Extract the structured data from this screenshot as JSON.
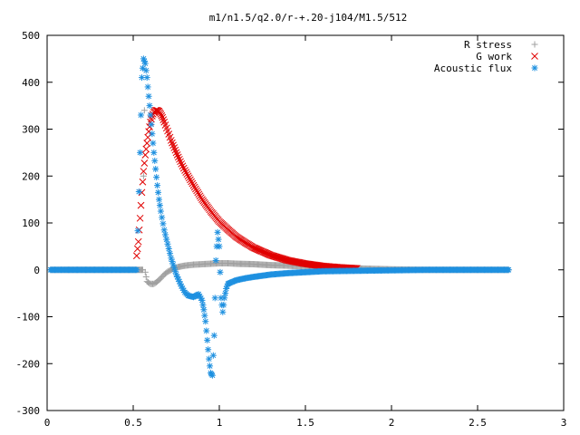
{
  "chart_data": {
    "type": "scatter",
    "title": "m1/n1.5/q2.0/r-+.20-j104/M1.5/512",
    "xlabel": "",
    "ylabel": "",
    "xlim": [
      0,
      3
    ],
    "ylim": [
      -300,
      500
    ],
    "x_ticks": [
      0,
      0.5,
      1,
      1.5,
      2,
      2.5,
      3
    ],
    "x_tick_labels": [
      "0",
      "0.5",
      "1",
      "1.5",
      "2",
      "2.5",
      "3"
    ],
    "y_ticks": [
      -300,
      -200,
      -100,
      0,
      100,
      200,
      300,
      400,
      500
    ],
    "y_tick_labels": [
      "-300",
      "-200",
      "-100",
      "0",
      "100",
      "200",
      "300",
      "400",
      "500"
    ],
    "grid": false,
    "legend_position": "top-right",
    "series": [
      {
        "name": "R stress",
        "marker": "plus",
        "color": "#a0a0a0",
        "x": [
          0.02,
          0.1,
          0.2,
          0.3,
          0.4,
          0.5,
          0.54,
          0.555,
          0.56,
          0.565,
          0.57,
          0.58,
          0.6,
          0.62,
          0.64,
          0.66,
          0.68,
          0.7,
          0.73,
          0.76,
          0.8,
          0.85,
          0.9,
          0.95,
          1.0,
          1.05,
          1.1,
          1.2,
          1.3,
          1.4,
          1.5,
          1.6,
          1.7,
          1.8,
          1.9,
          2.0,
          2.2,
          2.4,
          2.6,
          2.68
        ],
        "y": [
          0,
          0,
          0,
          0,
          0,
          0,
          0,
          0,
          200,
          340,
          -5,
          -25,
          -30,
          -30,
          -25,
          -18,
          -10,
          -4,
          2,
          6,
          9,
          11,
          12,
          13,
          14,
          14,
          13,
          12,
          10,
          9,
          7,
          5,
          4,
          3,
          2,
          1,
          0,
          0,
          0,
          0
        ]
      },
      {
        "name": "G work",
        "marker": "x",
        "color": "#e00000",
        "x": [
          0.52,
          0.53,
          0.54,
          0.55,
          0.56,
          0.57,
          0.58,
          0.59,
          0.6,
          0.61,
          0.62,
          0.63,
          0.64,
          0.65,
          0.66,
          0.67,
          0.68,
          0.7,
          0.72,
          0.75,
          0.78,
          0.8,
          0.85,
          0.9,
          0.95,
          1.0,
          1.05,
          1.1,
          1.15,
          1.2,
          1.3,
          1.4,
          1.5,
          1.6,
          1.7,
          1.8
        ],
        "y": [
          30,
          60,
          110,
          165,
          210,
          245,
          270,
          295,
          315,
          328,
          336,
          340,
          340,
          338,
          332,
          325,
          315,
          296,
          276,
          250,
          226,
          212,
          180,
          150,
          125,
          103,
          86,
          70,
          58,
          47,
          31,
          20,
          13,
          8,
          5,
          3
        ]
      },
      {
        "name": "Acoustic flux",
        "marker": "star",
        "color": "#1e90e0",
        "x": [
          0.02,
          0.1,
          0.2,
          0.3,
          0.4,
          0.5,
          0.52,
          0.54,
          0.55,
          0.56,
          0.57,
          0.58,
          0.59,
          0.6,
          0.61,
          0.62,
          0.63,
          0.64,
          0.65,
          0.66,
          0.68,
          0.7,
          0.72,
          0.75,
          0.78,
          0.8,
          0.82,
          0.85,
          0.88,
          0.9,
          0.91,
          0.92,
          0.93,
          0.94,
          0.95,
          0.96,
          0.97,
          0.98,
          0.99,
          1.0,
          1.01,
          1.02,
          1.03,
          1.04,
          1.05,
          1.06,
          1.08,
          1.1,
          1.15,
          1.2,
          1.3,
          1.4,
          1.5,
          1.6,
          1.8,
          2.0,
          2.2,
          2.4,
          2.6,
          2.68
        ],
        "y": [
          0,
          0,
          0,
          0,
          0,
          0,
          0,
          250,
          410,
          450,
          440,
          410,
          370,
          330,
          290,
          250,
          215,
          180,
          150,
          125,
          85,
          55,
          25,
          -10,
          -35,
          -48,
          -55,
          -58,
          -52,
          -65,
          -85,
          -110,
          -150,
          -190,
          -220,
          -225,
          -140,
          20,
          80,
          50,
          -60,
          -90,
          -60,
          -40,
          -30,
          -28,
          -25,
          -22,
          -18,
          -15,
          -10,
          -7,
          -5,
          -3,
          -2,
          -1,
          0,
          0,
          0,
          0
        ]
      }
    ]
  }
}
